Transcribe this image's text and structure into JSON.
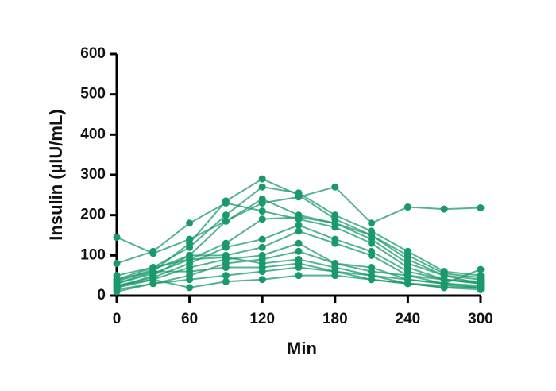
{
  "chart_data": {
    "type": "line",
    "x_label": "Min",
    "y_label": "Insulin (µIU/mL)",
    "x": [
      0,
      30,
      60,
      90,
      120,
      150,
      180,
      210,
      240,
      270,
      300
    ],
    "xlim": [
      0,
      300
    ],
    "xticks": [
      0,
      60,
      120,
      180,
      240,
      300
    ],
    "ylim": [
      0,
      600
    ],
    "yticks": [
      0,
      100,
      200,
      300,
      400,
      500,
      600
    ],
    "grid": false,
    "series": [
      {
        "color": "#1a9a6a",
        "values": [
          145,
          105,
          140,
          185,
          230,
          245,
          270,
          180,
          220,
          215,
          218
        ]
      },
      {
        "color": "#1a9a6a",
        "values": [
          30,
          60,
          130,
          235,
          290,
          250,
          190,
          150,
          100,
          55,
          45
        ]
      },
      {
        "color": "#1a9a6a",
        "values": [
          40,
          70,
          120,
          200,
          270,
          255,
          200,
          160,
          110,
          60,
          50
        ]
      },
      {
        "color": "#1a9a6a",
        "values": [
          20,
          50,
          100,
          185,
          240,
          200,
          180,
          140,
          80,
          50,
          40
        ]
      },
      {
        "color": "#1a9a6a",
        "values": [
          80,
          110,
          180,
          230,
          210,
          190,
          170,
          130,
          70,
          40,
          30
        ]
      },
      {
        "color": "#1a9a6a",
        "values": [
          30,
          55,
          90,
          130,
          190,
          195,
          180,
          150,
          90,
          50,
          30
        ]
      },
      {
        "color": "#1a9a6a",
        "values": [
          25,
          45,
          80,
          120,
          140,
          175,
          140,
          110,
          60,
          40,
          30
        ]
      },
      {
        "color": "#1a9a6a",
        "values": [
          35,
          65,
          100,
          100,
          120,
          160,
          130,
          100,
          50,
          30,
          25
        ]
      },
      {
        "color": "#1a9a6a",
        "values": [
          20,
          40,
          70,
          90,
          100,
          130,
          80,
          70,
          40,
          30,
          20
        ]
      },
      {
        "color": "#1a9a6a",
        "values": [
          15,
          30,
          50,
          80,
          90,
          110,
          80,
          60,
          50,
          40,
          35
        ]
      },
      {
        "color": "#1a9a6a",
        "values": [
          50,
          70,
          90,
          95,
          80,
          90,
          70,
          50,
          30,
          25,
          20
        ]
      },
      {
        "color": "#1a9a6a",
        "values": [
          10,
          30,
          40,
          50,
          60,
          70,
          60,
          50,
          40,
          30,
          65
        ]
      },
      {
        "color": "#1a9a6a",
        "values": [
          40,
          60,
          60,
          70,
          70,
          80,
          60,
          40,
          30,
          20,
          20
        ]
      },
      {
        "color": "#1a9a6a",
        "values": [
          25,
          40,
          20,
          35,
          40,
          50,
          50,
          40,
          30,
          20,
          15
        ]
      }
    ]
  }
}
